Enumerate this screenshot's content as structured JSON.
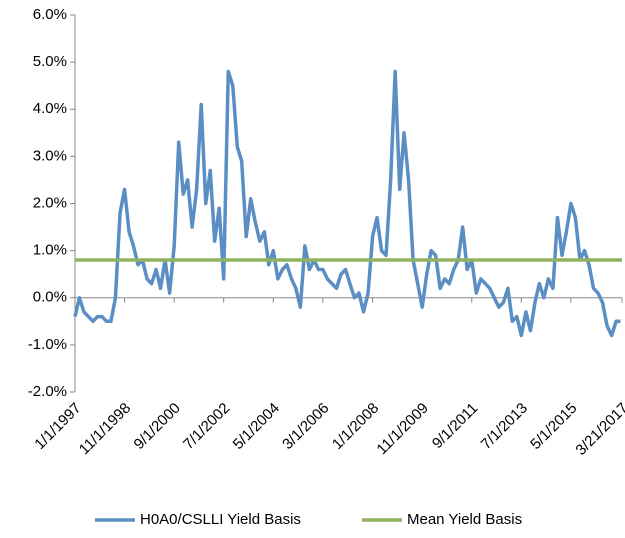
{
  "chart_data": {
    "type": "line",
    "x": [
      "1/1/1997",
      "3/1/1997",
      "5/1/1997",
      "7/1/1997",
      "9/1/1997",
      "11/1/1997",
      "1/1/1998",
      "3/1/1998",
      "5/1/1998",
      "7/1/1998",
      "9/1/1998",
      "11/1/1998",
      "1/1/1999",
      "3/1/1999",
      "5/1/1999",
      "7/1/1999",
      "9/1/1999",
      "11/1/1999",
      "1/1/2000",
      "3/1/2000",
      "5/1/2000",
      "7/1/2000",
      "9/1/2000",
      "11/1/2000",
      "1/1/2001",
      "3/1/2001",
      "5/1/2001",
      "7/1/2001",
      "9/1/2001",
      "11/1/2001",
      "1/1/2002",
      "3/1/2002",
      "5/1/2002",
      "7/1/2002",
      "9/1/2002",
      "11/1/2002",
      "1/1/2003",
      "3/1/2003",
      "5/1/2003",
      "7/1/2003",
      "9/1/2003",
      "11/1/2003",
      "1/1/2004",
      "3/1/2004",
      "5/1/2004",
      "7/1/2004",
      "9/1/2004",
      "11/1/2004",
      "1/1/2005",
      "3/1/2005",
      "5/1/2005",
      "7/1/2005",
      "9/1/2005",
      "11/1/2005",
      "1/1/2006",
      "3/1/2006",
      "5/1/2006",
      "7/1/2006",
      "9/1/2006",
      "11/1/2006",
      "1/1/2007",
      "3/1/2007",
      "5/1/2007",
      "7/1/2007",
      "9/1/2007",
      "11/1/2007",
      "1/1/2008",
      "3/1/2008",
      "5/1/2008",
      "7/1/2008",
      "9/1/2008",
      "11/1/2008",
      "1/1/2009",
      "3/1/2009",
      "5/1/2009",
      "7/1/2009",
      "9/1/2009",
      "11/1/2009",
      "1/1/2010",
      "3/1/2010",
      "5/1/2010",
      "7/1/2010",
      "9/1/2010",
      "11/1/2010",
      "1/1/2011",
      "3/1/2011",
      "5/1/2011",
      "7/1/2011",
      "9/1/2011",
      "11/1/2011",
      "1/1/2012",
      "3/1/2012",
      "5/1/2012",
      "7/1/2012",
      "9/1/2012",
      "11/1/2012",
      "1/1/2013",
      "3/1/2013",
      "5/1/2013",
      "7/1/2013",
      "9/1/2013",
      "11/1/2013",
      "1/1/2014",
      "3/1/2014",
      "5/1/2014",
      "7/1/2014",
      "9/1/2014",
      "11/1/2014",
      "1/1/2015",
      "3/1/2015",
      "5/1/2015",
      "7/1/2015",
      "9/1/2015",
      "11/1/2015",
      "1/1/2016",
      "3/1/2016",
      "5/1/2016",
      "7/1/2016",
      "9/1/2016",
      "11/1/2016",
      "1/1/2017",
      "3/1/2017"
    ],
    "series": [
      {
        "name": "H0A0/CSLLI Yield Basis",
        "color": "#5b8fc4",
        "values": [
          -0.4,
          0.0,
          -0.3,
          -0.4,
          -0.5,
          -0.4,
          -0.4,
          -0.5,
          -0.5,
          0.0,
          1.8,
          2.3,
          1.4,
          1.1,
          0.7,
          0.8,
          0.4,
          0.3,
          0.6,
          0.2,
          0.8,
          0.1,
          1.1,
          3.3,
          2.2,
          2.5,
          1.5,
          2.3,
          4.1,
          2.0,
          2.7,
          1.2,
          1.9,
          0.4,
          4.8,
          4.5,
          3.2,
          2.9,
          1.3,
          2.1,
          1.6,
          1.2,
          1.4,
          0.7,
          1.0,
          0.4,
          0.6,
          0.7,
          0.4,
          0.2,
          -0.2,
          1.1,
          0.6,
          0.8,
          0.6,
          0.6,
          0.4,
          0.3,
          0.2,
          0.5,
          0.6,
          0.3,
          0.0,
          0.1,
          -0.3,
          0.1,
          1.3,
          1.7,
          1.0,
          0.9,
          2.5,
          4.8,
          2.3,
          3.5,
          2.5,
          0.8,
          0.3,
          -0.2,
          0.5,
          1.0,
          0.9,
          0.2,
          0.4,
          0.3,
          0.6,
          0.8,
          1.5,
          0.6,
          0.8,
          0.1,
          0.4,
          0.3,
          0.2,
          0.0,
          -0.2,
          -0.1,
          0.2,
          -0.5,
          -0.4,
          -0.8,
          -0.3,
          -0.7,
          -0.1,
          0.3,
          0.0,
          0.4,
          0.2,
          1.7,
          0.9,
          1.4,
          2.0,
          1.7,
          0.8,
          1.0,
          0.7,
          0.2,
          0.1,
          -0.1,
          -0.6,
          -0.8,
          -0.5,
          -0.5
        ]
      },
      {
        "name": "Mean Yield Basis",
        "color": "#8fb35f",
        "value": 0.8
      }
    ],
    "xlim": [
      "1/1/1997",
      "3/21/2017"
    ],
    "xticks": [
      "1/1/1997",
      "11/1/1998",
      "9/1/2000",
      "7/1/2002",
      "5/1/2004",
      "3/1/2006",
      "1/1/2008",
      "11/1/2009",
      "9/1/2011",
      "7/1/2013",
      "5/1/2015",
      "3/21/2017"
    ],
    "ylim": [
      -2,
      6
    ],
    "yticks": [
      {
        "value": -2,
        "label": "-2.0%"
      },
      {
        "value": -1,
        "label": "-1.0%"
      },
      {
        "value": 0,
        "label": "0.0%"
      },
      {
        "value": 1,
        "label": "1.0%"
      },
      {
        "value": 2,
        "label": "2.0%"
      },
      {
        "value": 3,
        "label": "3.0%"
      },
      {
        "value": 4,
        "label": "4.0%"
      },
      {
        "value": 5,
        "label": "5.0%"
      },
      {
        "value": 6,
        "label": "6.0%"
      }
    ],
    "legend": "bottom"
  }
}
